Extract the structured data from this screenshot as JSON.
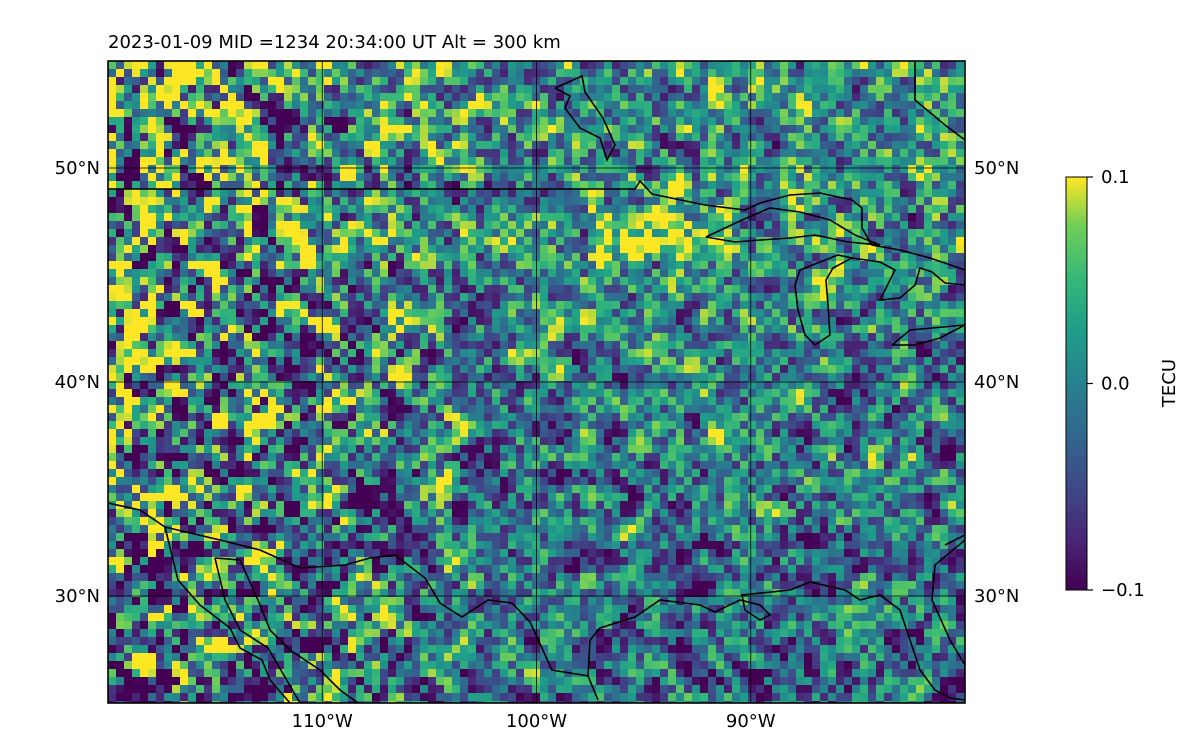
{
  "header": {
    "title": "2023-01-09  MID =1234    20:34:00  UT  Alt = 300 km"
  },
  "map": {
    "extent": {
      "lon_min": -120,
      "lon_max": -80,
      "lat_min": 25,
      "lat_max": 55
    },
    "lat_ticks": [
      {
        "value": 50,
        "label": "50°N"
      },
      {
        "value": 40,
        "label": "40°N"
      },
      {
        "value": 30,
        "label": "30°N"
      }
    ],
    "lon_ticks": [
      {
        "value": -110,
        "label": "110°W"
      },
      {
        "value": -100,
        "label": "100°W"
      },
      {
        "value": -90,
        "label": "90°W"
      }
    ],
    "grid": true,
    "coastlines": true
  },
  "colorbar": {
    "label": "TECU",
    "min": -0.1,
    "max": 0.1,
    "colormap": "viridis",
    "ticks": [
      {
        "value": 0.1,
        "label": "0.1"
      },
      {
        "value": 0.0,
        "label": "0.0"
      },
      {
        "value": -0.1,
        "label": "−0.1"
      }
    ]
  },
  "colors": {
    "grid": "#000000",
    "coastline": "#000000",
    "viridis_low": "#440154",
    "viridis_mid": "#21918c",
    "viridis_high": "#fde725"
  }
}
